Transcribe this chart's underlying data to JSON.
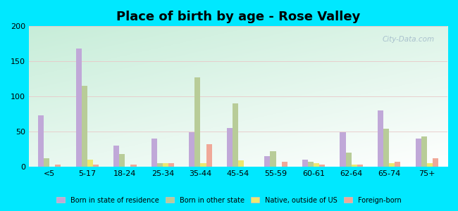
{
  "title": "Place of birth by age - Rose Valley",
  "categories": [
    "<5",
    "5-17",
    "18-24",
    "25-34",
    "35-44",
    "45-54",
    "55-59",
    "60-61",
    "62-64",
    "65-74",
    "75+"
  ],
  "series": {
    "Born in state of residence": [
      73,
      168,
      30,
      40,
      49,
      55,
      15,
      10,
      49,
      80,
      40
    ],
    "Born in other state": [
      12,
      115,
      18,
      5,
      127,
      90,
      22,
      7,
      20,
      54,
      43
    ],
    "Native, outside of US": [
      0,
      10,
      0,
      5,
      5,
      9,
      0,
      5,
      3,
      5,
      5
    ],
    "Foreign-born": [
      3,
      3,
      3,
      5,
      32,
      0,
      7,
      3,
      3,
      7,
      12
    ]
  },
  "colors": {
    "Born in state of residence": "#c0a8d8",
    "Born in other state": "#b8cc98",
    "Native, outside of US": "#ece870",
    "Foreign-born": "#f0a898"
  },
  "ylim": [
    0,
    200
  ],
  "yticks": [
    0,
    50,
    100,
    150,
    200
  ],
  "outer_bg": "#00e8ff",
  "bar_width": 0.15,
  "title_fontsize": 13,
  "watermark": "City-Data.com"
}
